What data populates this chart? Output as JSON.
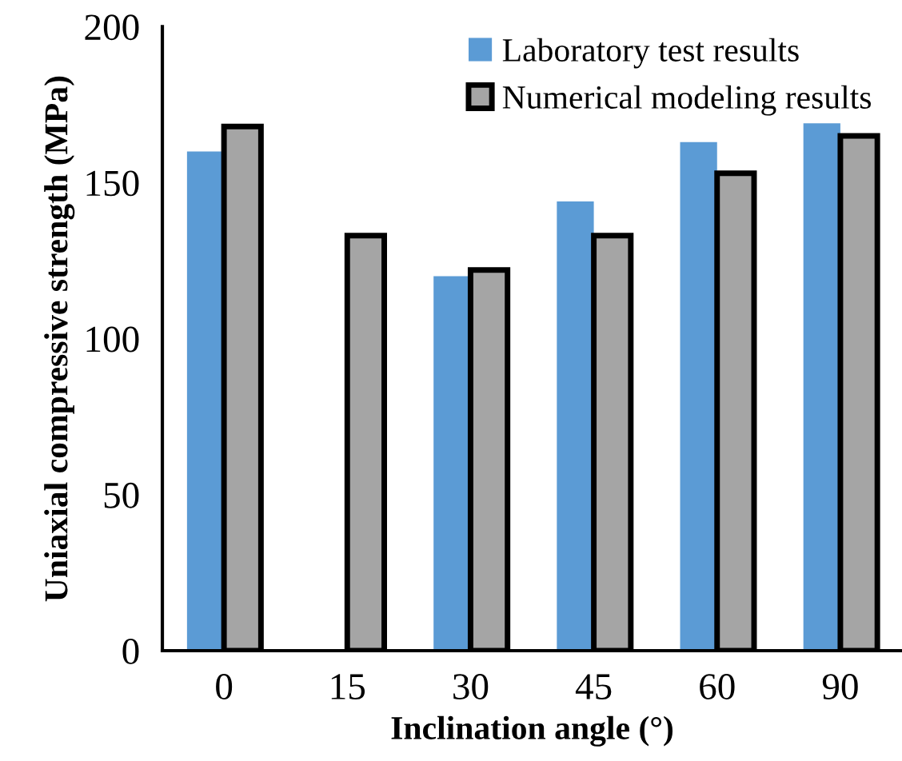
{
  "chart_data": {
    "type": "bar",
    "xlabel": "Inclination angle (°)",
    "ylabel": "Uniaxial compressive strength (MPa)",
    "categories": [
      "0",
      "15",
      "30",
      "45",
      "60",
      "90"
    ],
    "series": [
      {
        "name": "Laboratory test results",
        "color": "#5b9bd5",
        "values": [
          160,
          null,
          120,
          144,
          163,
          169
        ]
      },
      {
        "name": "Numerical modeling results",
        "color": "#a5a5a5",
        "values": [
          168,
          133,
          122,
          133,
          153,
          165
        ]
      }
    ],
    "ylim": [
      0,
      200
    ],
    "yticks": [
      0,
      50,
      100,
      150,
      200
    ],
    "grid": false,
    "legend": "top right"
  }
}
